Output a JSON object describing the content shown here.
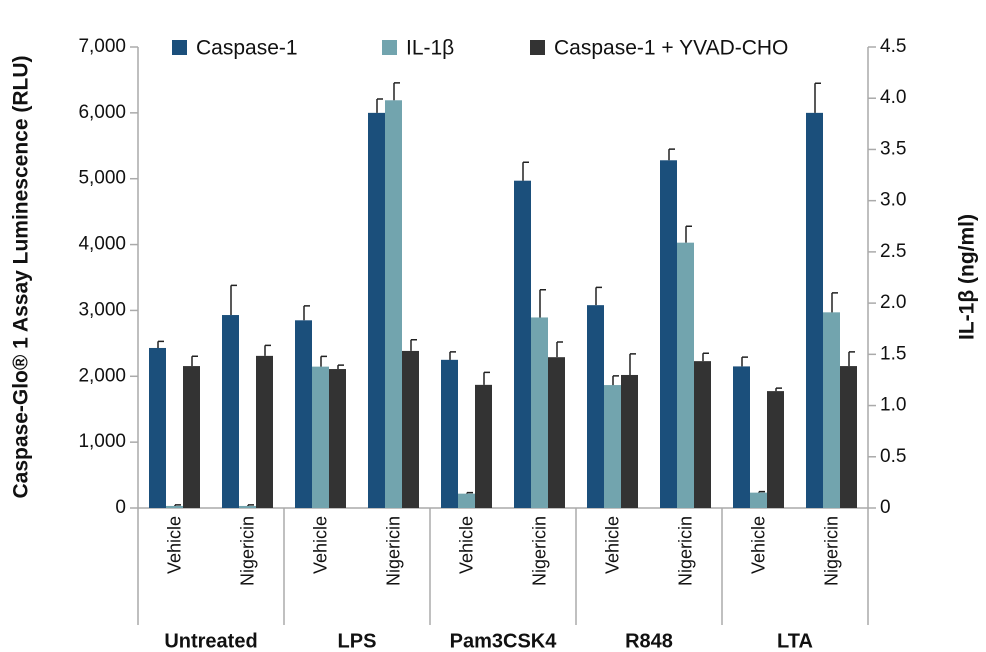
{
  "chart_data": {
    "type": "bar",
    "y_label": "Caspase-Glo® 1 Assay Luminescence (RLU)",
    "y2_label": "IL-1β (ng/ml)",
    "categories": [
      "Vehicle",
      "Nigericin",
      "Vehicle",
      "Nigericin",
      "Vehicle",
      "Nigericin",
      "Vehicle",
      "Nigericin",
      "Vehicle",
      "Nigericin"
    ],
    "groups": [
      "Untreated",
      "LPS",
      "Pam3CSK4",
      "R848",
      "LTA"
    ],
    "ylim": [
      0,
      7000
    ],
    "yticks": [
      0,
      {
        "value": 1000,
        "label": "1,000"
      },
      {
        "value": 2000,
        "label": "2,000"
      },
      {
        "value": 3000,
        "label": "3,000"
      },
      {
        "value": 4000,
        "label": "4,000"
      },
      {
        "value": 5000,
        "label": "5,000"
      },
      {
        "value": 6000,
        "label": "6,000"
      },
      {
        "value": 7000,
        "label": "7,000"
      }
    ],
    "y2lim": [
      0,
      4.5
    ],
    "y2ticks": [
      0,
      0.5,
      {
        "value": 1,
        "label": "1.0"
      },
      1.5,
      {
        "value": 2,
        "label": "2.0"
      },
      2.5,
      {
        "value": 3,
        "label": "3.0"
      },
      3.5,
      {
        "value": 4,
        "label": "4.0"
      },
      4.5
    ],
    "series": [
      {
        "name": "Caspase-1",
        "color": "#1b4f7b",
        "axis": "y",
        "values": [
          2430,
          2930,
          2850,
          6000,
          2250,
          4970,
          3080,
          5280,
          2150,
          6000
        ],
        "errors": [
          100,
          450,
          220,
          210,
          120,
          280,
          270,
          170,
          140,
          450
        ]
      },
      {
        "name": "IL-1β",
        "color": "#72a4ae",
        "axis": "y2",
        "values": [
          0.02,
          0.02,
          1.38,
          3.98,
          0.14,
          1.86,
          1.2,
          2.59,
          0.15,
          1.91
        ],
        "errors": [
          0.01,
          0.01,
          0.1,
          0.17,
          0.01,
          0.27,
          0.09,
          0.16,
          0.01,
          0.19
        ]
      },
      {
        "name": "Caspase-1 + YVAD-CHO",
        "color": "#333333",
        "axis": "y",
        "values": [
          2155,
          2310,
          2110,
          2385,
          1870,
          2290,
          2020,
          2230,
          1775,
          2155
        ],
        "errors": [
          150,
          160,
          60,
          170,
          190,
          230,
          320,
          120,
          45,
          215
        ]
      }
    ]
  }
}
